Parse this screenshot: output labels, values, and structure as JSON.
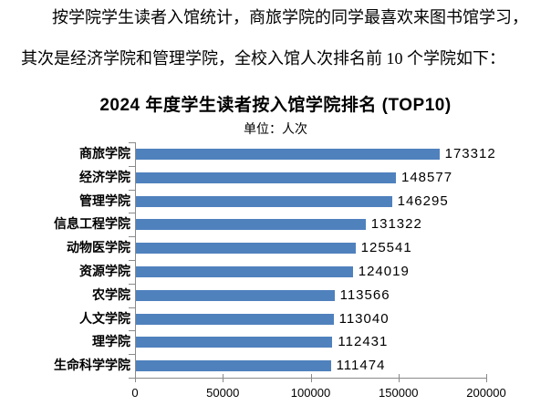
{
  "paragraph": {
    "line1": "按学院学生读者入馆统计，商旅学院的同学最喜欢来图书馆学习，",
    "line2": "其次是经济学院和管理学院，全校入馆人次排名前 10 个学院如下："
  },
  "chart_data": {
    "type": "bar",
    "orientation": "horizontal",
    "title": "2024 年度学生读者按入馆学院排名 (TOP10)",
    "subtitle": "单位：人次",
    "categories": [
      "商旅学院",
      "经济学院",
      "管理学院",
      "信息工程学院",
      "动物医学院",
      "资源学院",
      "农学院",
      "人文学院",
      "理学院",
      "生命科学学院"
    ],
    "values": [
      173312,
      148577,
      146295,
      131322,
      125541,
      124019,
      113566,
      113040,
      112431,
      111474
    ],
    "xlim": [
      0,
      200000
    ],
    "x_ticks": [
      0,
      50000,
      100000,
      150000,
      200000
    ],
    "x_tick_labels": [
      "0",
      "50000",
      "100000",
      "150000",
      "200000"
    ],
    "value_labels": [
      "173312",
      "148577",
      "146295",
      "131322",
      "125541",
      "124019",
      "113566",
      "113040",
      "112431",
      "111474"
    ],
    "bar_color": "#4F81BD",
    "axis_color": "#8a8a8a",
    "grid": false,
    "legend": "none"
  }
}
